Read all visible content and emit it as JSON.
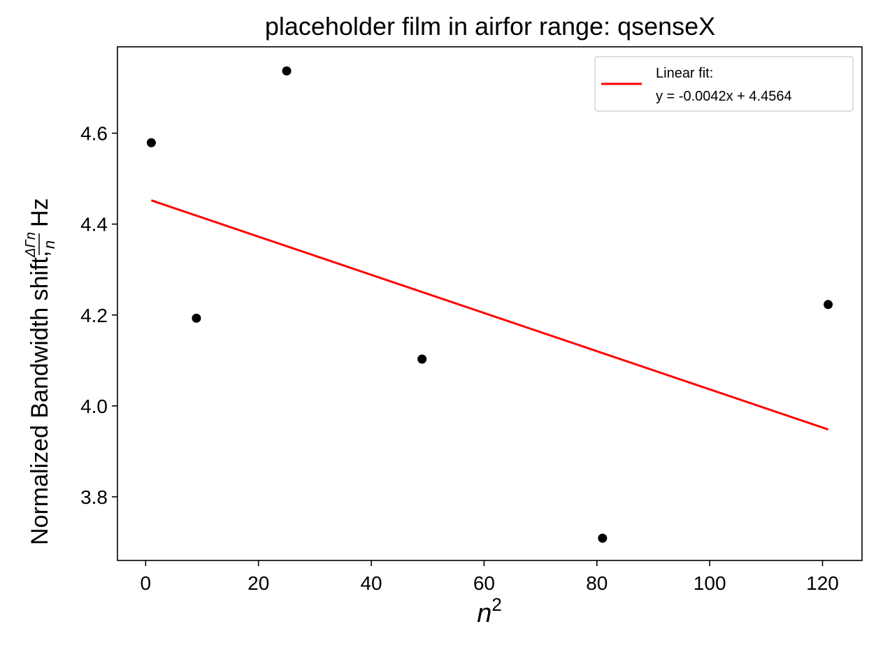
{
  "chart_data": {
    "type": "scatter",
    "title": "placeholder film in airfor range: qsenseX",
    "xlabel": "n",
    "xlabel_superscript": "2",
    "ylabel": "Normalized Bandwidth shift,",
    "ylabel_fraction_numerator": "ΔΓn",
    "ylabel_fraction_denominator": "n",
    "ylabel_unit": "Hz",
    "xlim": [
      -5,
      127
    ],
    "ylim": [
      3.66,
      4.79
    ],
    "x_ticks": [
      0,
      20,
      40,
      60,
      80,
      100,
      120
    ],
    "y_ticks": [
      3.8,
      4.0,
      4.2,
      4.4,
      4.6
    ],
    "grid": false,
    "legend_position": "top-right",
    "series": [
      {
        "type": "scatter",
        "color": "#000000",
        "points": [
          {
            "x": 1,
            "y": 4.579
          },
          {
            "x": 9,
            "y": 4.193
          },
          {
            "x": 25,
            "y": 4.737
          },
          {
            "x": 49,
            "y": 4.103
          },
          {
            "x": 81,
            "y": 3.709
          },
          {
            "x": 121,
            "y": 4.223
          }
        ]
      },
      {
        "type": "line",
        "name": "Linear fit:\ny = -0.0042x + 4.4564",
        "color": "#ff0000",
        "slope": -0.0042,
        "intercept": 4.4564,
        "x_range": [
          1,
          121
        ]
      }
    ]
  },
  "legend": {
    "line1": "Linear fit:",
    "line2": "y = -0.0042x + 4.4564"
  }
}
